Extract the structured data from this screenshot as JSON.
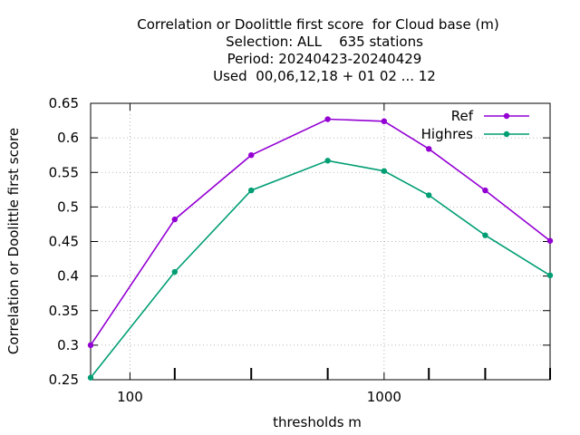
{
  "title_lines": [
    "Correlation or Doolittle first score  for Cloud base (m)",
    "Selection: ALL    635 stations",
    "Period: 20240423-20240429",
    "Used  00,06,12,18 + 01 02 ... 12"
  ],
  "chart_data": {
    "type": "line",
    "title": "Correlation or Doolittle first score  for Cloud base (m)",
    "xlabel": "thresholds m",
    "ylabel": "Correlation or Doolittle first score",
    "xscale": "log",
    "xlim": [
      70,
      4500
    ],
    "ylim": [
      0.25,
      0.65
    ],
    "grid": true,
    "legend_position": "top-right",
    "x": [
      70,
      150,
      300,
      600,
      1000,
      1500,
      2500,
      4500
    ],
    "x_tick_labels": [
      "100",
      "1000"
    ],
    "x_tick_values": [
      100,
      1000
    ],
    "x_minor_ticks": [
      150,
      300,
      600,
      1500,
      2500,
      4500
    ],
    "y_ticks": [
      0.25,
      0.3,
      0.35,
      0.4,
      0.45,
      0.5,
      0.55,
      0.6,
      0.65
    ],
    "y_tick_labels": [
      "0.25",
      "0.3",
      "0.35",
      "0.4",
      "0.45",
      "0.5",
      "0.55",
      "0.6",
      "0.65"
    ],
    "series": [
      {
        "name": "Ref",
        "color": "#9400d3",
        "values": [
          0.3,
          0.482,
          0.575,
          0.627,
          0.624,
          0.584,
          0.524,
          0.451
        ]
      },
      {
        "name": "Highres",
        "color": "#009e73",
        "values": [
          0.253,
          0.406,
          0.524,
          0.567,
          0.552,
          0.517,
          0.459,
          0.401
        ]
      }
    ]
  }
}
